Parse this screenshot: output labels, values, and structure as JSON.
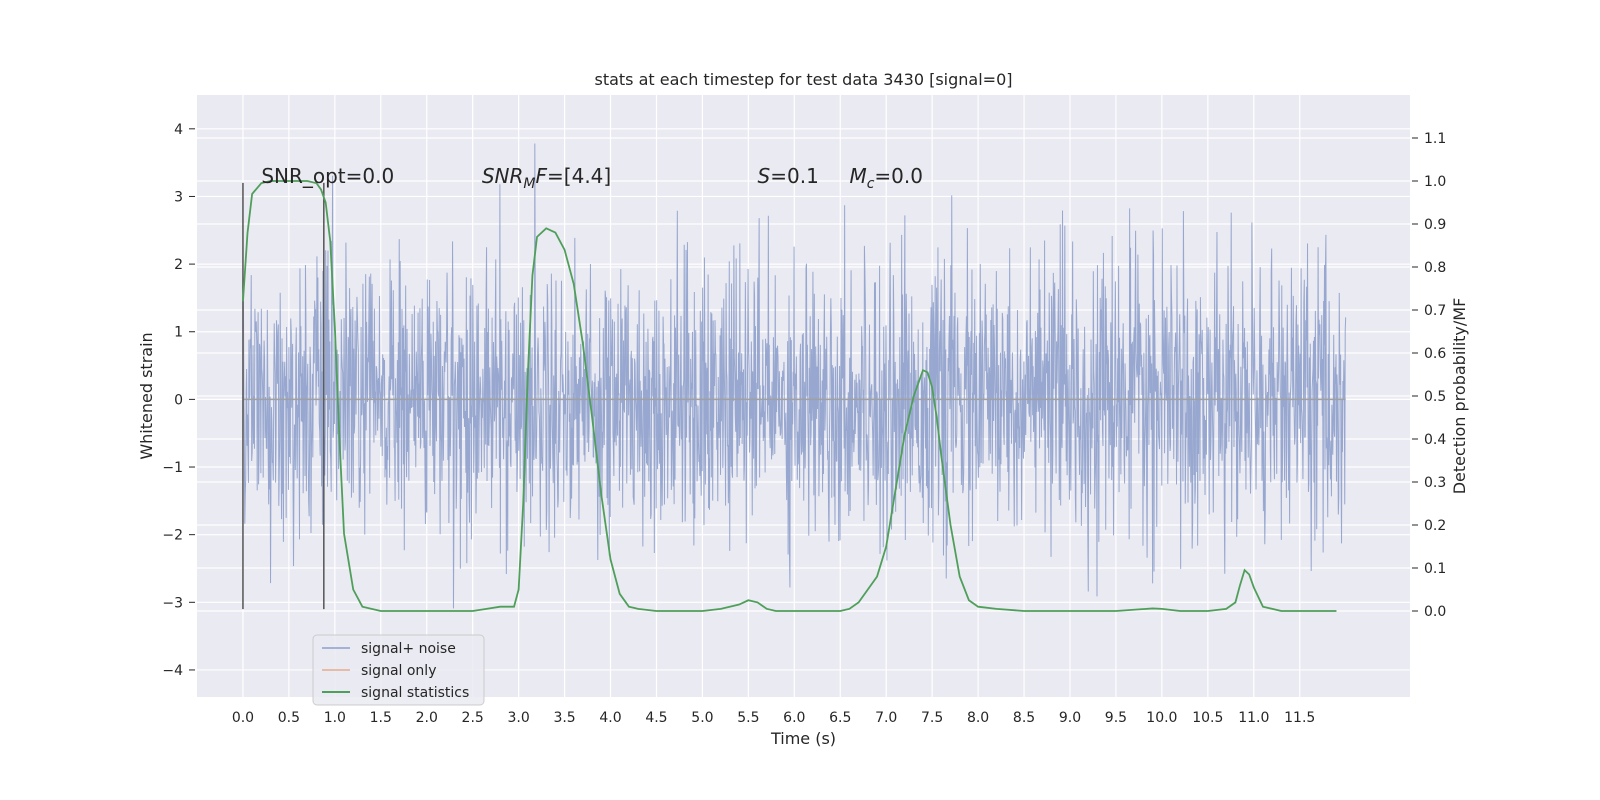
{
  "chart_data": {
    "type": "line",
    "title": "stats at each timestep for test data 3430 [signal=0]",
    "xlabel": "Time (s)",
    "ylabel_left": "Whitened strain",
    "ylabel_right": "Detection probability/MF",
    "xlim": [
      -0.5,
      12.7
    ],
    "ylim_left": [
      -4.4,
      4.5
    ],
    "ylim_right": [
      -0.2,
      1.2
    ],
    "xticks": [
      "0.0",
      "0.5",
      "1.0",
      "1.5",
      "2.0",
      "2.5",
      "3.0",
      "3.5",
      "4.0",
      "4.5",
      "5.0",
      "5.5",
      "6.0",
      "6.5",
      "7.0",
      "7.5",
      "8.0",
      "8.5",
      "9.0",
      "9.5",
      "10.0",
      "10.5",
      "11.0",
      "11.5"
    ],
    "yticks_left": [
      "4",
      "3",
      "2",
      "1",
      "0",
      "−1",
      "−2",
      "−3",
      "−4"
    ],
    "yticks_right": [
      "1.1",
      "1.0",
      "0.9",
      "0.8",
      "0.7",
      "0.6",
      "0.5",
      "0.4",
      "0.3",
      "0.2",
      "0.1",
      "0.0"
    ],
    "grid": true,
    "legend_position": "lower-left",
    "annotations": [
      {
        "id": "snr-opt",
        "parts": [
          {
            "t": "SNR_opt=0.0",
            "i": false
          }
        ],
        "x": 0.2,
        "y": 3.2
      },
      {
        "id": "snr-mf",
        "parts": [
          {
            "t": "SNR",
            "i": true
          },
          {
            "t": "M",
            "i": true,
            "sub": true
          },
          {
            "t": "F",
            "i": true
          },
          {
            "t": "=[4.4]",
            "i": false
          }
        ],
        "x": 2.6,
        "y": 3.2
      },
      {
        "id": "s-val",
        "parts": [
          {
            "t": "S",
            "i": true
          },
          {
            "t": "=0.1",
            "i": false
          }
        ],
        "x": 5.6,
        "y": 3.2
      },
      {
        "id": "mc-val",
        "parts": [
          {
            "t": "M",
            "i": true
          },
          {
            "t": "c",
            "i": true,
            "sub": true
          },
          {
            "t": "=0.0",
            "i": false
          }
        ],
        "x": 6.6,
        "y": 3.2
      }
    ],
    "series": [
      {
        "name": "signal+ noise",
        "color": "#8ea0cb",
        "kind": "noise",
        "x_range": [
          0,
          12.0
        ],
        "amplitude": 1.0
      },
      {
        "name": "signal only",
        "color": "#e8a98f",
        "kind": "flat",
        "x": [
          0,
          12.0
        ],
        "y": [
          0,
          0
        ]
      },
      {
        "name": "signal statistics",
        "color": "#4f9f5a",
        "kind": "line",
        "x": [
          0.0,
          0.05,
          0.1,
          0.2,
          0.3,
          0.5,
          0.7,
          0.8,
          0.85,
          0.9,
          0.95,
          1.0,
          1.05,
          1.1,
          1.2,
          1.3,
          1.5,
          2.0,
          2.5,
          2.65,
          2.8,
          2.95,
          3.0,
          3.05,
          3.1,
          3.15,
          3.2,
          3.3,
          3.4,
          3.5,
          3.6,
          3.7,
          3.8,
          3.9,
          4.0,
          4.1,
          4.2,
          4.3,
          4.5,
          5.0,
          5.2,
          5.4,
          5.5,
          5.6,
          5.7,
          5.8,
          6.0,
          6.5,
          6.6,
          6.7,
          6.8,
          6.9,
          7.0,
          7.1,
          7.2,
          7.3,
          7.4,
          7.45,
          7.5,
          7.55,
          7.6,
          7.7,
          7.8,
          7.9,
          8.0,
          8.2,
          8.5,
          9.0,
          9.5,
          9.9,
          10.0,
          10.2,
          10.5,
          10.7,
          10.8,
          10.85,
          10.9,
          10.95,
          11.0,
          11.1,
          11.3,
          11.5,
          11.9
        ],
        "y": [
          0.72,
          0.88,
          0.97,
          0.995,
          1.0,
          1.0,
          1.0,
          0.995,
          0.98,
          0.95,
          0.86,
          0.66,
          0.4,
          0.18,
          0.05,
          0.01,
          0.0,
          0.0,
          0.0,
          0.005,
          0.01,
          0.01,
          0.05,
          0.25,
          0.55,
          0.78,
          0.87,
          0.89,
          0.88,
          0.84,
          0.76,
          0.62,
          0.45,
          0.27,
          0.12,
          0.04,
          0.01,
          0.005,
          0.0,
          0.0,
          0.005,
          0.015,
          0.025,
          0.02,
          0.005,
          0.0,
          0.0,
          0.0,
          0.005,
          0.02,
          0.05,
          0.08,
          0.15,
          0.28,
          0.41,
          0.5,
          0.56,
          0.555,
          0.52,
          0.45,
          0.36,
          0.2,
          0.08,
          0.025,
          0.01,
          0.005,
          0.0,
          0.0,
          0.0,
          0.006,
          0.005,
          0.0,
          0.0,
          0.005,
          0.02,
          0.06,
          0.095,
          0.085,
          0.055,
          0.01,
          0.0,
          0.0,
          0.0
        ]
      }
    ],
    "markers": [
      {
        "x": 0.0,
        "y_top": 3.2,
        "y_bottom": -3.1
      },
      {
        "x": 0.88,
        "y_top": 3.2,
        "y_bottom": -3.1
      }
    ]
  }
}
